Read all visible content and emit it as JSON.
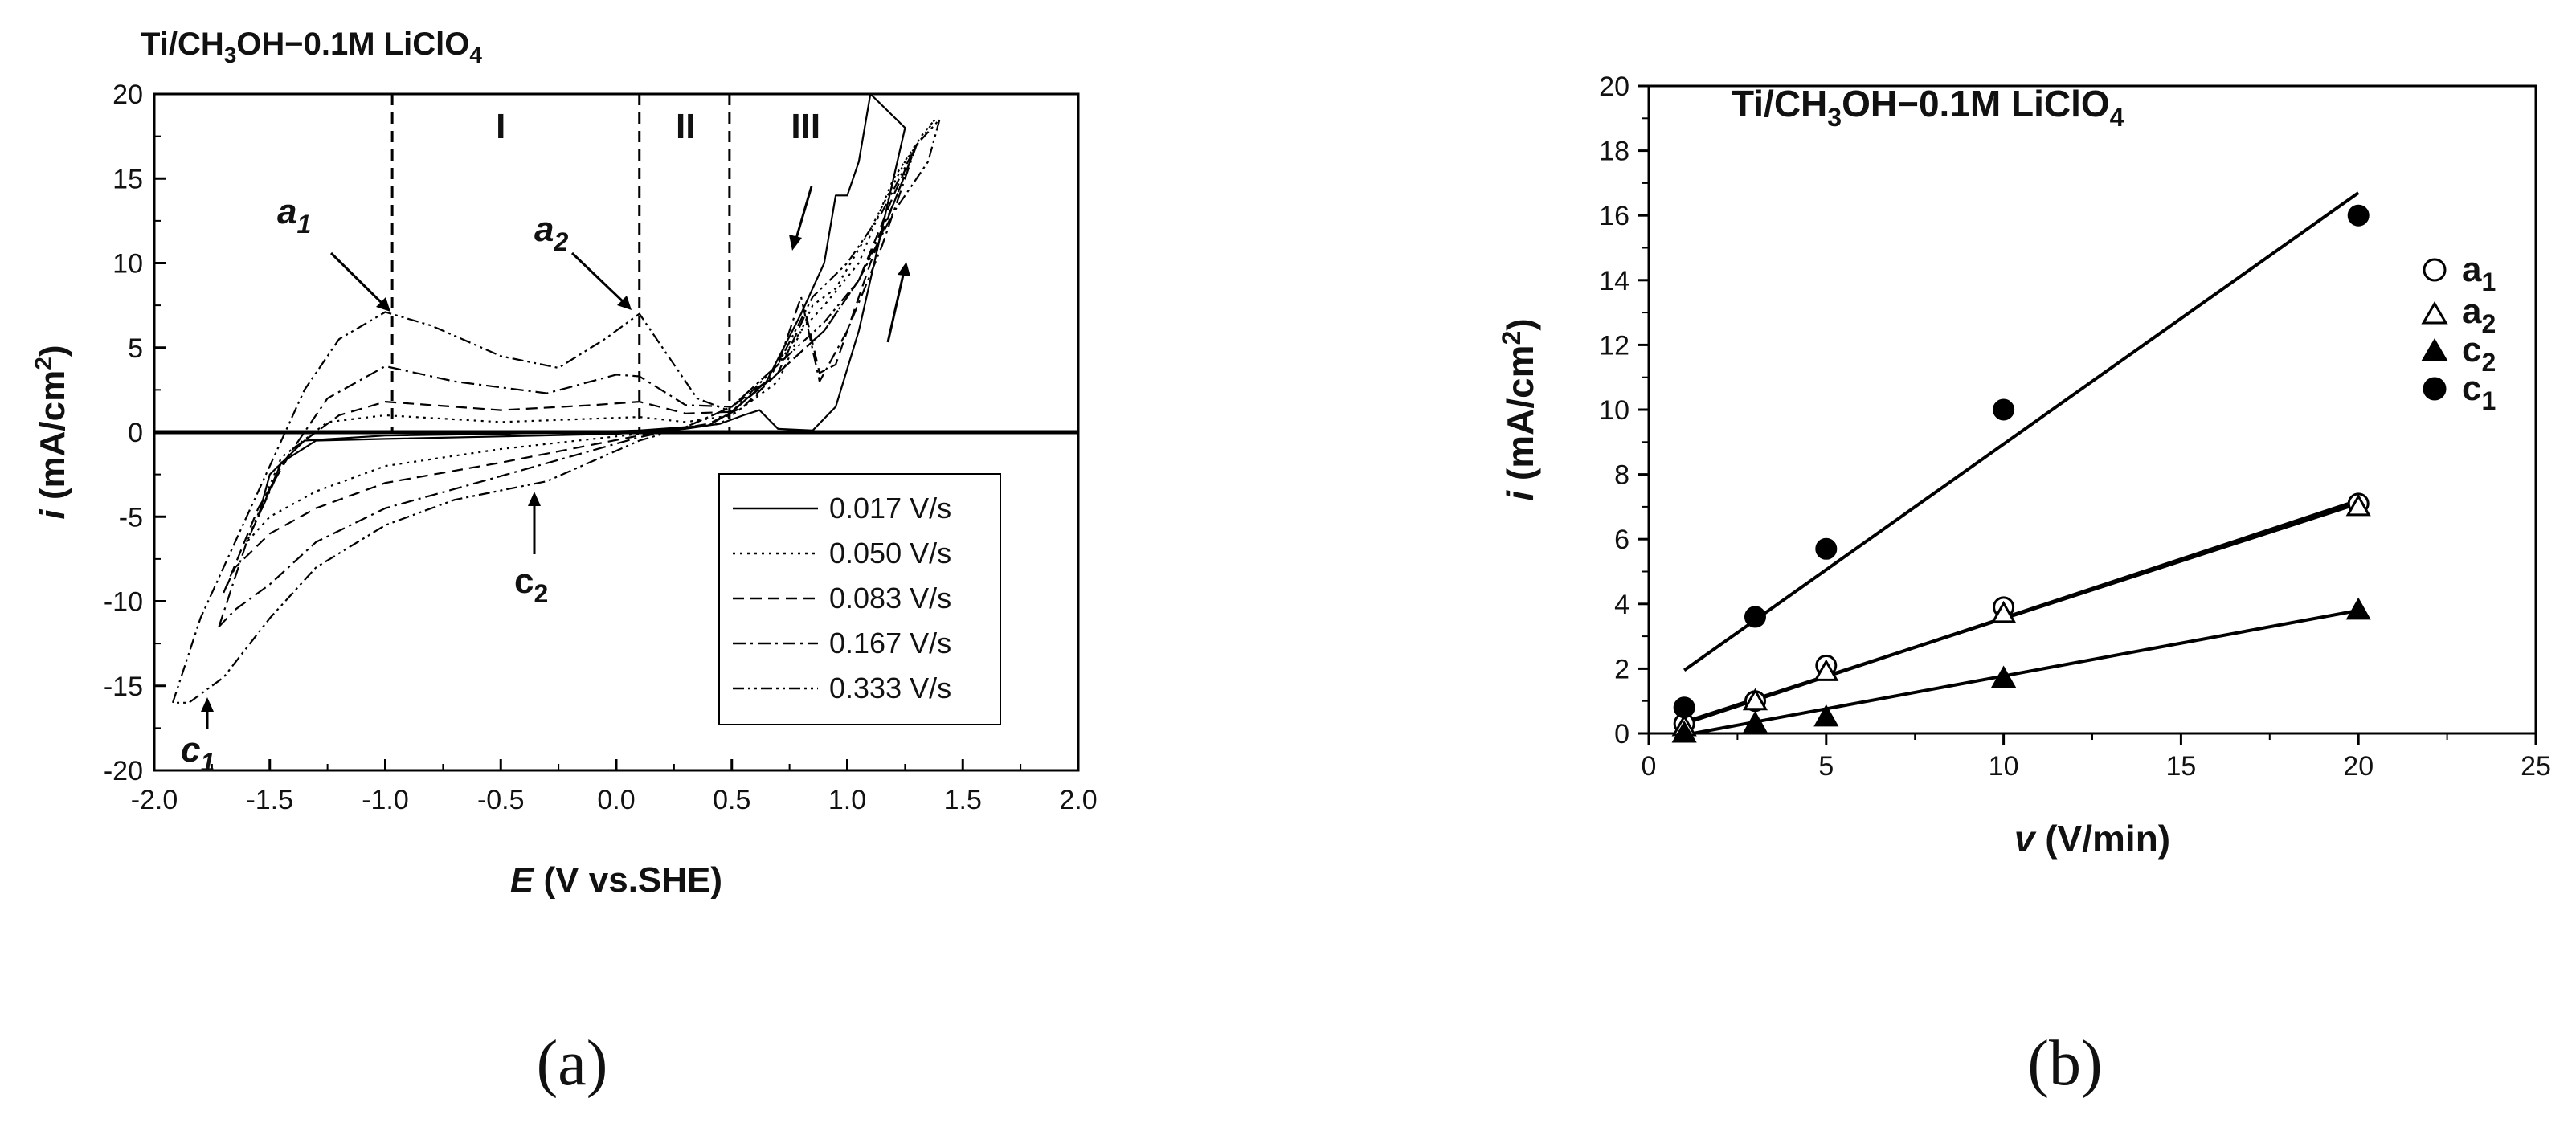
{
  "chart_data": [
    {
      "panel": "a",
      "type": "line",
      "caption": "(a)",
      "title": "Ti/CH3OH−0.1M LiClO4",
      "title_parts": {
        "pre": "Ti/CH",
        "sub1": "3",
        "mid": "OH−0.1M LiClO",
        "sub2": "4"
      },
      "xlabel": {
        "italic": "E",
        "rest": " (V vs.SHE)"
      },
      "ylabel": {
        "italic": "i",
        "rest": " (mA/cm",
        "sup": "2",
        "end": ")"
      },
      "xlim": [
        -2.0,
        2.0
      ],
      "ylim": [
        -20,
        20
      ],
      "xticks": [
        -2.0,
        -1.5,
        -1.0,
        -0.5,
        0.0,
        0.5,
        1.0,
        1.5,
        2.0
      ],
      "xtick_labels": [
        "-2.0",
        "-1.5",
        "-1.0",
        "-0.5",
        "0.0",
        "0.5",
        "1.0",
        "1.5",
        "2.0"
      ],
      "yticks": [
        -20,
        -15,
        -10,
        -5,
        0,
        5,
        10,
        15,
        20
      ],
      "ytick_labels": [
        "-20",
        "-15",
        "-10",
        "-5",
        "0",
        "5",
        "10",
        "15",
        "20"
      ],
      "regions": [
        {
          "label": "I",
          "x": -0.5
        },
        {
          "label": "II",
          "x": 0.3
        },
        {
          "label": "III",
          "x": 0.82
        }
      ],
      "boundaries": [
        -0.97,
        0.1,
        0.49
      ],
      "peak_labels": [
        {
          "base": "a",
          "sub": "1",
          "x": -1.0,
          "y": 7.0
        },
        {
          "base": "a",
          "sub": "2",
          "x": 0.1,
          "y": 7.0
        },
        {
          "base": "c",
          "sub": "2",
          "x": -0.3,
          "y": -3.5
        },
        {
          "base": "c",
          "sub": "1",
          "x": -1.72,
          "y": -16.0
        }
      ],
      "legend_position": "lower-right",
      "series": [
        {
          "name": "0.017 V/s",
          "dash": "solid",
          "forward": [
            [
              -1.55,
              -5.0
            ],
            [
              -1.45,
              -1.8
            ],
            [
              -1.3,
              -0.5
            ],
            [
              -1.0,
              -0.4
            ],
            [
              -0.5,
              -0.25
            ],
            [
              0,
              -0.1
            ],
            [
              0.3,
              0.2
            ],
            [
              0.45,
              0.5
            ],
            [
              0.55,
              1.0
            ],
            [
              0.62,
              1.3
            ],
            [
              0.7,
              0.2
            ],
            [
              0.85,
              0.1
            ],
            [
              0.95,
              1.5
            ],
            [
              1.05,
              6
            ],
            [
              1.15,
              12
            ],
            [
              1.25,
              18
            ]
          ],
          "reverse": [
            [
              1.1,
              20
            ],
            [
              1.05,
              16
            ],
            [
              1.0,
              14
            ],
            [
              0.95,
              14
            ],
            [
              0.9,
              10
            ],
            [
              0.8,
              7
            ],
            [
              0.65,
              3
            ],
            [
              0.5,
              1.2
            ],
            [
              0.4,
              0.4
            ],
            [
              0.1,
              0.1
            ],
            [
              -0.5,
              -0.1
            ],
            [
              -1.0,
              -0.2
            ],
            [
              -1.35,
              -0.5
            ],
            [
              -1.5,
              -2.5
            ],
            [
              -1.55,
              -5.0
            ]
          ]
        },
        {
          "name": "0.050 V/s",
          "dash": "dotted",
          "forward": [
            [
              -1.6,
              -6.5
            ],
            [
              -1.45,
              -1.5
            ],
            [
              -1.25,
              0.6
            ],
            [
              -1.0,
              1.0
            ],
            [
              -0.5,
              0.6
            ],
            [
              -0.1,
              0.8
            ],
            [
              0.1,
              0.9
            ],
            [
              0.3,
              0.6
            ],
            [
              0.5,
              1.0
            ],
            [
              0.7,
              3.0
            ],
            [
              0.85,
              7.5
            ],
            [
              0.95,
              8.5
            ],
            [
              1.1,
              12
            ],
            [
              1.25,
              16
            ],
            [
              1.38,
              18.5
            ]
          ],
          "reverse": [
            [
              1.38,
              18.5
            ],
            [
              1.32,
              17.5
            ],
            [
              1.2,
              15
            ],
            [
              1.05,
              10
            ],
            [
              0.9,
              7.5
            ],
            [
              0.8,
              6
            ],
            [
              0.6,
              2
            ],
            [
              0.45,
              0.5
            ],
            [
              0.1,
              -0.1
            ],
            [
              -0.5,
              -1.0
            ],
            [
              -1.0,
              -2.0
            ],
            [
              -1.3,
              -3.5
            ],
            [
              -1.5,
              -5.0
            ],
            [
              -1.6,
              -6.5
            ]
          ]
        },
        {
          "name": "0.083 V/s",
          "dash": "dashed",
          "forward": [
            [
              -1.7,
              -9.5
            ],
            [
              -1.55,
              -4.5
            ],
            [
              -1.4,
              -1.0
            ],
            [
              -1.2,
              1.0
            ],
            [
              -1.0,
              1.8
            ],
            [
              -0.5,
              1.3
            ],
            [
              -0.1,
              1.6
            ],
            [
              0.1,
              1.8
            ],
            [
              0.3,
              1.1
            ],
            [
              0.5,
              1.2
            ],
            [
              0.7,
              3.5
            ],
            [
              0.82,
              7
            ],
            [
              0.88,
              3.5
            ],
            [
              0.95,
              4
            ],
            [
              1.1,
              10
            ],
            [
              1.3,
              17
            ]
          ],
          "reverse": [
            [
              1.3,
              17
            ],
            [
              1.2,
              14
            ],
            [
              1.05,
              9
            ],
            [
              0.9,
              6
            ],
            [
              0.7,
              3.5
            ],
            [
              0.55,
              1.5
            ],
            [
              0.4,
              0.5
            ],
            [
              0.1,
              -0.2
            ],
            [
              -0.5,
              -1.8
            ],
            [
              -1.0,
              -3.0
            ],
            [
              -1.3,
              -4.5
            ],
            [
              -1.5,
              -6
            ],
            [
              -1.65,
              -8
            ],
            [
              -1.7,
              -9.5
            ]
          ]
        },
        {
          "name": "0.167 V/s",
          "dash": "dashdot",
          "forward": [
            [
              -1.72,
              -11.5
            ],
            [
              -1.6,
              -6.5
            ],
            [
              -1.45,
              -2
            ],
            [
              -1.25,
              2
            ],
            [
              -1.0,
              3.9
            ],
            [
              -0.7,
              3.0
            ],
            [
              -0.3,
              2.3
            ],
            [
              0.0,
              3.4
            ],
            [
              0.1,
              3.3
            ],
            [
              0.3,
              1.6
            ],
            [
              0.5,
              1.5
            ],
            [
              0.7,
              4
            ],
            [
              0.8,
              8
            ],
            [
              0.88,
              3
            ],
            [
              1.0,
              6
            ],
            [
              1.15,
              11
            ],
            [
              1.3,
              17
            ]
          ],
          "reverse": [
            [
              1.3,
              17
            ],
            [
              1.2,
              13.5
            ],
            [
              1.05,
              9
            ],
            [
              0.9,
              6
            ],
            [
              0.7,
              3.5
            ],
            [
              0.5,
              1.5
            ],
            [
              0.3,
              0.3
            ],
            [
              0.1,
              -0.3
            ],
            [
              -0.5,
              -2.6
            ],
            [
              -1.0,
              -4.5
            ],
            [
              -1.3,
              -6.5
            ],
            [
              -1.5,
              -9
            ],
            [
              -1.65,
              -10.5
            ],
            [
              -1.72,
              -11.5
            ]
          ]
        },
        {
          "name": "0.333 V/s",
          "dash": "dashdotdot",
          "forward": [
            [
              -1.92,
              -16
            ],
            [
              -1.8,
              -11
            ],
            [
              -1.65,
              -6.5
            ],
            [
              -1.5,
              -2
            ],
            [
              -1.35,
              2.5
            ],
            [
              -1.2,
              5.5
            ],
            [
              -1.0,
              7.1
            ],
            [
              -0.8,
              6.3
            ],
            [
              -0.5,
              4.5
            ],
            [
              -0.25,
              3.8
            ],
            [
              -0.05,
              5.5
            ],
            [
              0.1,
              7.0
            ],
            [
              0.2,
              5.0
            ],
            [
              0.35,
              2.0
            ],
            [
              0.5,
              1.2
            ],
            [
              0.7,
              4
            ],
            [
              0.85,
              8
            ],
            [
              1.0,
              10
            ],
            [
              1.15,
              13
            ],
            [
              1.3,
              17
            ],
            [
              1.4,
              18.5
            ]
          ],
          "reverse": [
            [
              1.4,
              18.5
            ],
            [
              1.35,
              16
            ],
            [
              1.2,
              13
            ],
            [
              1.05,
              9
            ],
            [
              0.9,
              6.5
            ],
            [
              0.7,
              4
            ],
            [
              0.5,
              1.5
            ],
            [
              0.3,
              0.3
            ],
            [
              0.1,
              -0.5
            ],
            [
              -0.3,
              -2.9
            ],
            [
              -0.7,
              -4
            ],
            [
              -1.0,
              -5.5
            ],
            [
              -1.3,
              -8
            ],
            [
              -1.5,
              -11
            ],
            [
              -1.7,
              -14.5
            ],
            [
              -1.85,
              -16
            ],
            [
              -1.92,
              -16
            ]
          ]
        }
      ]
    },
    {
      "panel": "b",
      "type": "scatter",
      "caption": "(b)",
      "title": "Ti/CH3OH−0.1M LiClO4",
      "title_parts": {
        "pre": "Ti/CH",
        "sub1": "3",
        "mid": "OH−0.1M LiClO",
        "sub2": "4"
      },
      "xlabel": {
        "italic": "v",
        "rest": " (V/min)"
      },
      "ylabel": {
        "italic": "i",
        "rest": " (mA/cm",
        "sup": "2",
        "end": ")"
      },
      "xlim": [
        0,
        25
      ],
      "ylim": [
        0,
        20
      ],
      "xticks": [
        0,
        5,
        10,
        15,
        20,
        25
      ],
      "xtick_labels": [
        "0",
        "5",
        "10",
        "15",
        "20",
        "25"
      ],
      "yticks": [
        0,
        2,
        4,
        6,
        8,
        10,
        12,
        14,
        16,
        18,
        20
      ],
      "ytick_labels": [
        "0",
        "2",
        "4",
        "6",
        "8",
        "10",
        "12",
        "14",
        "16",
        "18",
        "20"
      ],
      "legend_position": "right",
      "series": [
        {
          "name": "a1",
          "name_base": "a",
          "name_sub": "1",
          "marker": "open-circle",
          "x": [
            1,
            3,
            5,
            10,
            20
          ],
          "y": [
            0.3,
            1.0,
            2.1,
            3.9,
            7.1
          ],
          "fit": [
            [
              1,
              0.3
            ],
            [
              20,
              7.2
            ]
          ]
        },
        {
          "name": "a2",
          "name_base": "a",
          "name_sub": "2",
          "marker": "open-triangle",
          "x": [
            1,
            3,
            5,
            10,
            20
          ],
          "y": [
            0.2,
            1.0,
            1.9,
            3.7,
            7.0
          ],
          "fit": [
            [
              1,
              0.35
            ],
            [
              20,
              7.1
            ]
          ]
        },
        {
          "name": "c2",
          "name_base": "c",
          "name_sub": "2",
          "marker": "filled-triangle",
          "x": [
            1,
            3,
            5,
            10,
            20
          ],
          "y": [
            0.0,
            0.3,
            0.5,
            1.7,
            3.8
          ],
          "fit": [
            [
              1,
              -0.05
            ],
            [
              20,
              3.8
            ]
          ]
        },
        {
          "name": "c1",
          "name_base": "c",
          "name_sub": "1",
          "marker": "filled-circle",
          "x": [
            1,
            3,
            5,
            10,
            20
          ],
          "y": [
            0.8,
            3.6,
            5.7,
            10.0,
            16.0
          ],
          "fit": [
            [
              1,
              1.95
            ],
            [
              20,
              16.7
            ]
          ]
        }
      ]
    }
  ]
}
